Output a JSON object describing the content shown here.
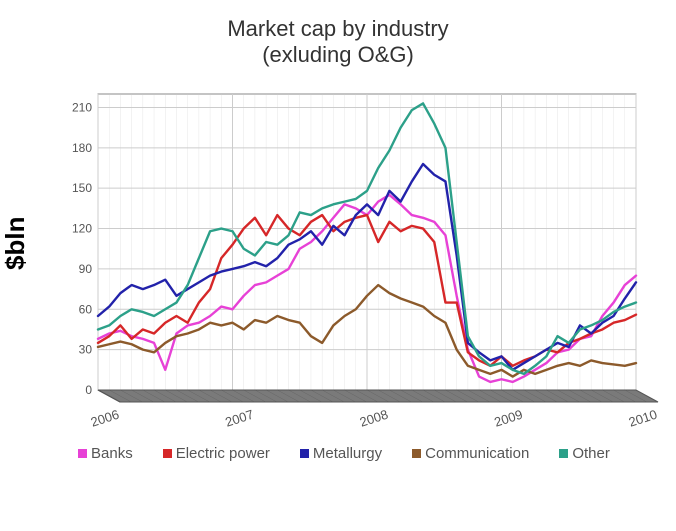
{
  "chart": {
    "type": "line",
    "title_line1": "Market cap by industry",
    "title_line2": "(exluding O&G)",
    "title_fontsize": 22,
    "title_color": "#333333",
    "ylabel": "$bln",
    "ylabel_fontsize": 26,
    "background_color": "#ffffff",
    "plot_bg": "#ffffff",
    "grid_color": "#cccccc",
    "floor_fill": "#7a7a7a",
    "floor_stroke": "#555555",
    "axis_color": "#888888",
    "ylim": [
      0,
      220
    ],
    "yticks": [
      0,
      30,
      60,
      90,
      120,
      150,
      180,
      210
    ],
    "x_count": 49,
    "xticks": [
      {
        "i": 0,
        "label": "2006"
      },
      {
        "i": 12,
        "label": "2007"
      },
      {
        "i": 24,
        "label": "2008"
      },
      {
        "i": 36,
        "label": "2009"
      },
      {
        "i": 48,
        "label": "2010"
      }
    ],
    "line_width": 2.4,
    "skew_dx": 22,
    "skew_dy": 12,
    "series": [
      {
        "name": "Banks",
        "label": "Banks",
        "color": "#e741d6",
        "values": [
          38,
          42,
          44,
          40,
          38,
          35,
          15,
          42,
          48,
          50,
          55,
          62,
          60,
          70,
          78,
          80,
          85,
          90,
          105,
          110,
          118,
          128,
          138,
          135,
          130,
          140,
          145,
          138,
          130,
          128,
          125,
          115,
          70,
          30,
          10,
          6,
          8,
          6,
          10,
          15,
          20,
          28,
          30,
          38,
          40,
          55,
          65,
          78,
          85
        ]
      },
      {
        "name": "Electric power",
        "label": "Electric power",
        "color": "#d62728",
        "values": [
          35,
          40,
          48,
          38,
          45,
          42,
          50,
          55,
          50,
          65,
          75,
          98,
          108,
          120,
          128,
          115,
          130,
          120,
          115,
          125,
          130,
          118,
          125,
          128,
          130,
          110,
          125,
          118,
          122,
          120,
          110,
          65,
          65,
          28,
          22,
          18,
          25,
          18,
          22,
          25,
          30,
          28,
          35,
          38,
          42,
          45,
          50,
          52,
          56
        ]
      },
      {
        "name": "Metallurgy",
        "label": "Metallurgy",
        "color": "#2222aa",
        "values": [
          55,
          62,
          72,
          78,
          75,
          78,
          82,
          70,
          75,
          80,
          85,
          88,
          90,
          92,
          95,
          92,
          98,
          108,
          112,
          118,
          108,
          122,
          115,
          130,
          138,
          130,
          148,
          140,
          155,
          168,
          160,
          155,
          100,
          35,
          28,
          22,
          25,
          15,
          20,
          25,
          30,
          35,
          32,
          48,
          42,
          50,
          55,
          68,
          80
        ]
      },
      {
        "name": "Communication",
        "label": "Communication",
        "color": "#8c5a2b",
        "values": [
          32,
          34,
          36,
          34,
          30,
          28,
          35,
          40,
          42,
          45,
          50,
          48,
          50,
          45,
          52,
          50,
          55,
          52,
          50,
          40,
          35,
          48,
          55,
          60,
          70,
          78,
          72,
          68,
          65,
          62,
          55,
          50,
          30,
          18,
          15,
          12,
          15,
          10,
          15,
          12,
          15,
          18,
          20,
          18,
          22,
          20,
          19,
          18,
          20
        ]
      },
      {
        "name": "Other",
        "label": "Other",
        "color": "#2ca089",
        "values": [
          45,
          48,
          55,
          60,
          58,
          55,
          60,
          65,
          78,
          98,
          118,
          120,
          118,
          105,
          100,
          110,
          108,
          115,
          132,
          130,
          135,
          138,
          140,
          142,
          148,
          165,
          178,
          195,
          208,
          213,
          198,
          180,
          110,
          40,
          25,
          18,
          20,
          15,
          12,
          18,
          25,
          40,
          35,
          45,
          48,
          52,
          58,
          62,
          65
        ]
      }
    ],
    "legend": {
      "swatch_size": 9,
      "fontsize": 15,
      "color": "#555555"
    }
  }
}
